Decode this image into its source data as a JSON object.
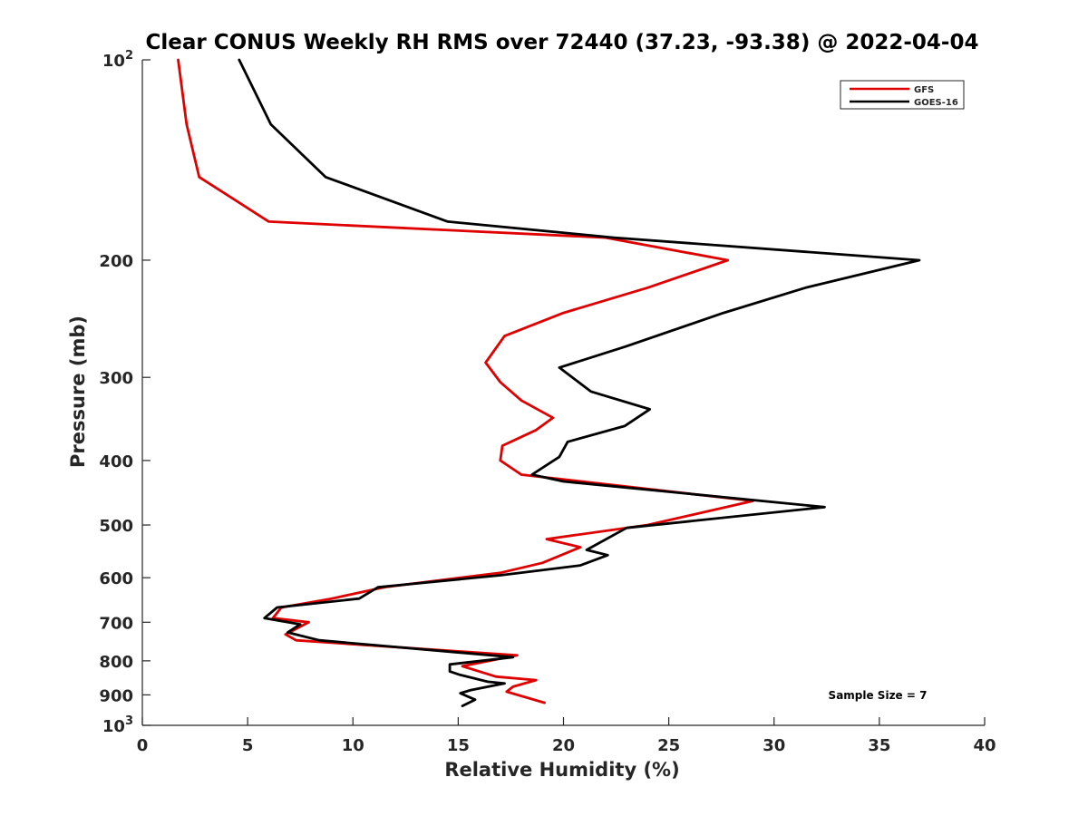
{
  "chart_data": {
    "type": "line",
    "title": "Clear CONUS Weekly RH RMS over 72440 (37.23, -93.38) @ 2022-04-04",
    "xlabel": "Relative Humidity (%)",
    "ylabel": "Pressure (mb)",
    "xlim": [
      0,
      40
    ],
    "ylim": [
      100,
      1000
    ],
    "y_scale": "log",
    "y_reversed": true,
    "grid": false,
    "legend_position": "top-right",
    "x_ticks": [
      "0",
      "5",
      "10",
      "15",
      "20",
      "25",
      "30",
      "35",
      "40"
    ],
    "y_ticks": [
      {
        "value": 100,
        "base": "10",
        "exp": "2"
      },
      {
        "value": 200,
        "label": "200"
      },
      {
        "value": 300,
        "label": "300"
      },
      {
        "value": 400,
        "label": "400"
      },
      {
        "value": 500,
        "label": "500"
      },
      {
        "value": 600,
        "label": "600"
      },
      {
        "value": 700,
        "label": "700"
      },
      {
        "value": 800,
        "label": "800"
      },
      {
        "value": 900,
        "label": "900"
      },
      {
        "value": 1000,
        "base": "10",
        "exp": "3"
      }
    ],
    "series": [
      {
        "name": "GFS",
        "color": "#e00000",
        "points": [
          [
            1.7,
            100
          ],
          [
            2.1,
            125
          ],
          [
            2.7,
            150
          ],
          [
            6.0,
            175
          ],
          [
            22.0,
            185
          ],
          [
            27.8,
            200
          ],
          [
            24.0,
            220
          ],
          [
            20.0,
            240
          ],
          [
            17.2,
            260
          ],
          [
            16.3,
            285
          ],
          [
            17.0,
            305
          ],
          [
            18.0,
            325
          ],
          [
            19.5,
            345
          ],
          [
            18.7,
            360
          ],
          [
            17.1,
            380
          ],
          [
            17.0,
            400
          ],
          [
            18.0,
            420
          ],
          [
            29.0,
            460
          ],
          [
            24.0,
            500
          ],
          [
            19.2,
            525
          ],
          [
            20.8,
            540
          ],
          [
            19.0,
            570
          ],
          [
            17.0,
            590
          ],
          [
            11.5,
            620
          ],
          [
            9.0,
            645
          ],
          [
            6.6,
            665
          ],
          [
            6.2,
            690
          ],
          [
            7.9,
            700
          ],
          [
            6.8,
            730
          ],
          [
            7.3,
            745
          ],
          [
            17.8,
            785
          ],
          [
            15.2,
            815
          ],
          [
            16.8,
            845
          ],
          [
            18.7,
            855
          ],
          [
            17.6,
            875
          ],
          [
            17.3,
            890
          ],
          [
            19.1,
            925
          ]
        ]
      },
      {
        "name": "GOES-16",
        "color": "#000000",
        "points": [
          [
            4.6,
            100
          ],
          [
            6.1,
            125
          ],
          [
            8.7,
            150
          ],
          [
            14.5,
            175
          ],
          [
            22.4,
            185
          ],
          [
            36.9,
            200
          ],
          [
            31.5,
            220
          ],
          [
            27.6,
            240
          ],
          [
            22.9,
            270
          ],
          [
            19.8,
            290
          ],
          [
            21.3,
            315
          ],
          [
            24.1,
            335
          ],
          [
            22.9,
            355
          ],
          [
            20.2,
            375
          ],
          [
            19.8,
            395
          ],
          [
            18.5,
            420
          ],
          [
            20.0,
            430
          ],
          [
            32.4,
            470
          ],
          [
            23.0,
            505
          ],
          [
            21.1,
            545
          ],
          [
            22.1,
            555
          ],
          [
            20.8,
            575
          ],
          [
            17.0,
            595
          ],
          [
            11.2,
            620
          ],
          [
            10.3,
            645
          ],
          [
            6.4,
            665
          ],
          [
            5.8,
            690
          ],
          [
            7.5,
            705
          ],
          [
            6.9,
            725
          ],
          [
            8.4,
            745
          ],
          [
            17.6,
            790
          ],
          [
            14.6,
            810
          ],
          [
            14.6,
            830
          ],
          [
            15.1,
            840
          ],
          [
            16.4,
            860
          ],
          [
            17.2,
            865
          ],
          [
            15.6,
            885
          ],
          [
            15.1,
            895
          ],
          [
            15.8,
            915
          ],
          [
            15.2,
            935
          ]
        ]
      }
    ],
    "annotation": "Sample Size = 7"
  }
}
